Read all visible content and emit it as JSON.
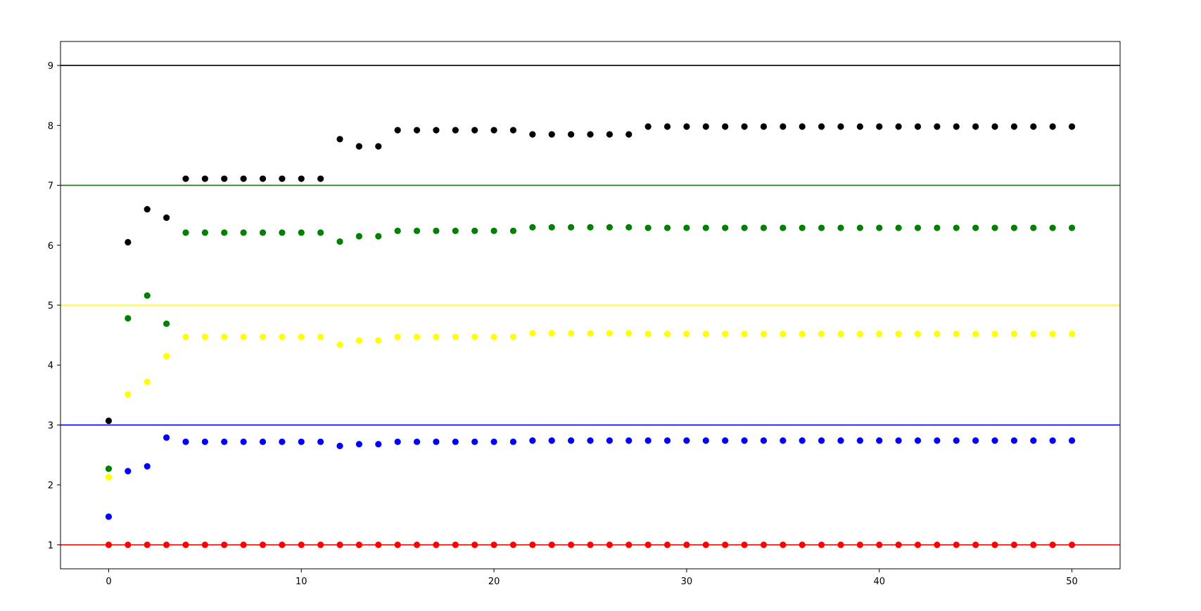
{
  "chart_data": {
    "type": "scatter",
    "title": "",
    "xlabel": "",
    "ylabel": "",
    "xlim": [
      -2.5,
      52.5
    ],
    "ylim": [
      0.6,
      9.4
    ],
    "xticks": [
      0,
      10,
      20,
      30,
      40,
      50
    ],
    "yticks": [
      1,
      2,
      3,
      4,
      5,
      6,
      7,
      8,
      9
    ],
    "grid": false,
    "legend": "none",
    "hlines": [
      {
        "y": 9,
        "color": "#000000"
      },
      {
        "y": 7,
        "color": "#008000"
      },
      {
        "y": 5,
        "color": "#ffff00"
      },
      {
        "y": 3,
        "color": "#0000ff"
      },
      {
        "y": 1,
        "color": "#ff0000"
      }
    ],
    "x": [
      0,
      1,
      2,
      3,
      4,
      5,
      6,
      7,
      8,
      9,
      10,
      11,
      12,
      13,
      14,
      15,
      16,
      17,
      18,
      19,
      20,
      21,
      22,
      23,
      24,
      25,
      26,
      27,
      28,
      29,
      30,
      31,
      32,
      33,
      34,
      35,
      36,
      37,
      38,
      39,
      40,
      41,
      42,
      43,
      44,
      45,
      46,
      47,
      48,
      49,
      50
    ],
    "series": [
      {
        "color": "#ff0000",
        "values": [
          1,
          1,
          1,
          1,
          1,
          1,
          1,
          1,
          1,
          1,
          1,
          1,
          1,
          1,
          1,
          1,
          1,
          1,
          1,
          1,
          1,
          1,
          1,
          1,
          1,
          1,
          1,
          1,
          1,
          1,
          1,
          1,
          1,
          1,
          1,
          1,
          1,
          1,
          1,
          1,
          1,
          1,
          1,
          1,
          1,
          1,
          1,
          1,
          1,
          1,
          1
        ]
      },
      {
        "color": "#0000ff",
        "values": [
          1.47,
          2.23,
          2.31,
          2.79,
          2.72,
          2.72,
          2.72,
          2.72,
          2.72,
          2.72,
          2.72,
          2.72,
          2.65,
          2.68,
          2.68,
          2.72,
          2.72,
          2.72,
          2.72,
          2.72,
          2.72,
          2.72,
          2.74,
          2.74,
          2.74,
          2.74,
          2.74,
          2.74,
          2.74,
          2.74,
          2.74,
          2.74,
          2.74,
          2.74,
          2.74,
          2.74,
          2.74,
          2.74,
          2.74,
          2.74,
          2.74,
          2.74,
          2.74,
          2.74,
          2.74,
          2.74,
          2.74,
          2.74,
          2.74,
          2.74,
          2.74
        ]
      },
      {
        "color": "#ffff00",
        "values": [
          2.13,
          3.51,
          3.72,
          4.15,
          4.47,
          4.47,
          4.47,
          4.47,
          4.47,
          4.47,
          4.47,
          4.47,
          4.34,
          4.41,
          4.41,
          4.47,
          4.47,
          4.47,
          4.47,
          4.47,
          4.47,
          4.47,
          4.53,
          4.53,
          4.53,
          4.53,
          4.53,
          4.53,
          4.52,
          4.52,
          4.52,
          4.52,
          4.52,
          4.52,
          4.52,
          4.52,
          4.52,
          4.52,
          4.52,
          4.52,
          4.52,
          4.52,
          4.52,
          4.52,
          4.52,
          4.52,
          4.52,
          4.52,
          4.52,
          4.52,
          4.52
        ]
      },
      {
        "color": "#008000",
        "values": [
          2.27,
          4.78,
          5.16,
          4.69,
          6.21,
          6.21,
          6.21,
          6.21,
          6.21,
          6.21,
          6.21,
          6.21,
          6.06,
          6.15,
          6.15,
          6.24,
          6.24,
          6.24,
          6.24,
          6.24,
          6.24,
          6.24,
          6.3,
          6.3,
          6.3,
          6.3,
          6.3,
          6.3,
          6.29,
          6.29,
          6.29,
          6.29,
          6.29,
          6.29,
          6.29,
          6.29,
          6.29,
          6.29,
          6.29,
          6.29,
          6.29,
          6.29,
          6.29,
          6.29,
          6.29,
          6.29,
          6.29,
          6.29,
          6.29,
          6.29,
          6.29
        ]
      },
      {
        "color": "#000000",
        "values": [
          3.07,
          6.05,
          6.6,
          6.46,
          7.11,
          7.11,
          7.11,
          7.11,
          7.11,
          7.11,
          7.11,
          7.11,
          7.77,
          7.65,
          7.65,
          7.92,
          7.92,
          7.92,
          7.92,
          7.92,
          7.92,
          7.92,
          7.85,
          7.85,
          7.85,
          7.85,
          7.85,
          7.85,
          7.98,
          7.98,
          7.98,
          7.98,
          7.98,
          7.98,
          7.98,
          7.98,
          7.98,
          7.98,
          7.98,
          7.98,
          7.98,
          7.98,
          7.98,
          7.98,
          7.98,
          7.98,
          7.98,
          7.98,
          7.98,
          7.98,
          7.98
        ]
      }
    ]
  }
}
